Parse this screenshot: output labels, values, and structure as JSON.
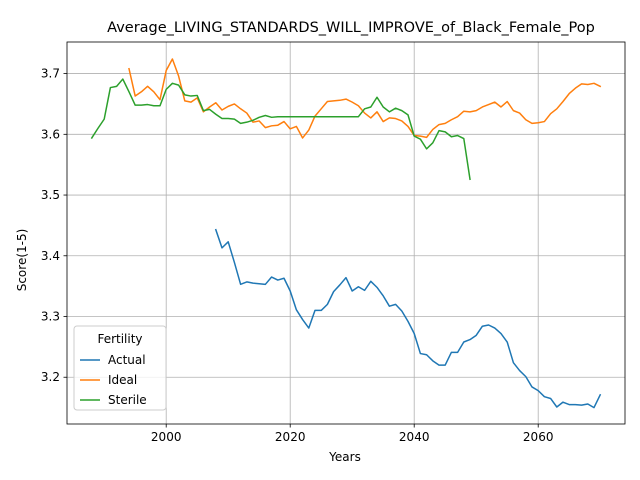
{
  "chart_data": {
    "type": "line",
    "title": "Average_LIVING_STANDARDS_WILL_IMPROVE_of_Black_Female_Pop",
    "xlabel": "Years",
    "ylabel": "Score(1-5)",
    "xlim": [
      1984,
      2074
    ],
    "ylim": [
      3.123,
      3.752
    ],
    "xticks": [
      2000,
      2020,
      2040,
      2060
    ],
    "yticks": [
      3.2,
      3.3,
      3.4,
      3.5,
      3.6,
      3.7
    ],
    "grid": true,
    "legend": {
      "title": "Fertility",
      "position": "lower-left"
    },
    "series": [
      {
        "name": "Actual",
        "color": "#1f77b4",
        "x": [
          2008,
          2009,
          2010,
          2011,
          2012,
          2013,
          2014,
          2015,
          2016,
          2017,
          2018,
          2019,
          2020,
          2021,
          2022,
          2023,
          2024,
          2025,
          2026,
          2027,
          2028,
          2029,
          2030,
          2031,
          2032,
          2033,
          2034,
          2035,
          2036,
          2037,
          2038,
          2039,
          2040,
          2041,
          2042,
          2043,
          2044,
          2045,
          2046,
          2047,
          2048,
          2049,
          2050,
          2051,
          2052,
          2053,
          2054,
          2055,
          2056,
          2057,
          2058,
          2059,
          2060,
          2061,
          2062,
          2063,
          2064,
          2065,
          2066,
          2067,
          2068,
          2069,
          2070
        ],
        "values": [
          3.443,
          3.413,
          3.423,
          3.389,
          3.353,
          3.357,
          3.355,
          3.354,
          3.353,
          3.365,
          3.36,
          3.363,
          3.342,
          3.311,
          3.295,
          3.281,
          3.31,
          3.31,
          3.32,
          3.341,
          3.352,
          3.364,
          3.342,
          3.349,
          3.343,
          3.358,
          3.348,
          3.334,
          3.317,
          3.32,
          3.309,
          3.292,
          3.272,
          3.239,
          3.237,
          3.227,
          3.22,
          3.22,
          3.241,
          3.241,
          3.258,
          3.262,
          3.269,
          3.284,
          3.286,
          3.281,
          3.272,
          3.258,
          3.224,
          3.211,
          3.201,
          3.184,
          3.178,
          3.168,
          3.165,
          3.151,
          3.159,
          3.155,
          3.155,
          3.154,
          3.156,
          3.15,
          3.171
        ]
      },
      {
        "name": "Ideal",
        "color": "#ff7f0e",
        "x": [
          1994,
          1995,
          1996,
          1997,
          1998,
          1999,
          2000,
          2001,
          2002,
          2003,
          2004,
          2005,
          2006,
          2007,
          2008,
          2009,
          2010,
          2011,
          2012,
          2013,
          2014,
          2015,
          2016,
          2017,
          2018,
          2019,
          2020,
          2021,
          2022,
          2023,
          2024,
          2025,
          2026,
          2027,
          2028,
          2029,
          2030,
          2031,
          2032,
          2033,
          2034,
          2035,
          2036,
          2037,
          2038,
          2039,
          2040,
          2041,
          2042,
          2043,
          2044,
          2045,
          2046,
          2047,
          2048,
          2049,
          2050,
          2051,
          2052,
          2053,
          2054,
          2055,
          2056,
          2057,
          2058,
          2059,
          2060,
          2061,
          2062,
          2063,
          2064,
          2065,
          2066,
          2067,
          2068,
          2069,
          2070
        ],
        "values": [
          3.708,
          3.663,
          3.67,
          3.679,
          3.67,
          3.657,
          3.705,
          3.724,
          3.696,
          3.655,
          3.653,
          3.66,
          3.637,
          3.645,
          3.652,
          3.64,
          3.646,
          3.65,
          3.642,
          3.635,
          3.62,
          3.622,
          3.611,
          3.614,
          3.615,
          3.621,
          3.609,
          3.613,
          3.594,
          3.607,
          3.63,
          3.642,
          3.654,
          3.655,
          3.656,
          3.658,
          3.653,
          3.647,
          3.635,
          3.627,
          3.637,
          3.621,
          3.627,
          3.626,
          3.622,
          3.613,
          3.598,
          3.597,
          3.595,
          3.608,
          3.616,
          3.618,
          3.624,
          3.629,
          3.638,
          3.637,
          3.639,
          3.645,
          3.649,
          3.653,
          3.645,
          3.654,
          3.639,
          3.635,
          3.624,
          3.618,
          3.619,
          3.621,
          3.634,
          3.642,
          3.654,
          3.667,
          3.676,
          3.683,
          3.682,
          3.684,
          3.679
        ]
      },
      {
        "name": "Sterile",
        "color": "#2ca02c",
        "x": [
          1988,
          1989,
          1990,
          1991,
          1992,
          1993,
          1994,
          1995,
          1996,
          1997,
          1998,
          1999,
          2000,
          2001,
          2002,
          2003,
          2004,
          2005,
          2006,
          2007,
          2008,
          2009,
          2010,
          2011,
          2012,
          2013,
          2014,
          2015,
          2016,
          2017,
          2018,
          2019,
          2020,
          2021,
          2022,
          2023,
          2024,
          2025,
          2026,
          2027,
          2028,
          2029,
          2030,
          2031,
          2032,
          2033,
          2034,
          2035,
          2036,
          2037,
          2038,
          2039,
          2040,
          2041,
          2042,
          2043,
          2044,
          2045,
          2046,
          2047,
          2048,
          2049
        ],
        "values": [
          3.594,
          3.61,
          3.625,
          3.677,
          3.679,
          3.691,
          3.67,
          3.648,
          3.648,
          3.649,
          3.647,
          3.647,
          3.674,
          3.684,
          3.681,
          3.665,
          3.663,
          3.664,
          3.639,
          3.641,
          3.633,
          3.626,
          3.626,
          3.625,
          3.618,
          3.62,
          3.623,
          3.628,
          3.631,
          3.628,
          3.629,
          3.629,
          3.629,
          3.629,
          3.629,
          3.629,
          3.629,
          3.629,
          3.629,
          3.629,
          3.629,
          3.629,
          3.629,
          3.629,
          3.642,
          3.645,
          3.661,
          3.645,
          3.637,
          3.643,
          3.639,
          3.632,
          3.597,
          3.592,
          3.576,
          3.586,
          3.606,
          3.604,
          3.596,
          3.598,
          3.593,
          3.526
        ]
      }
    ]
  }
}
